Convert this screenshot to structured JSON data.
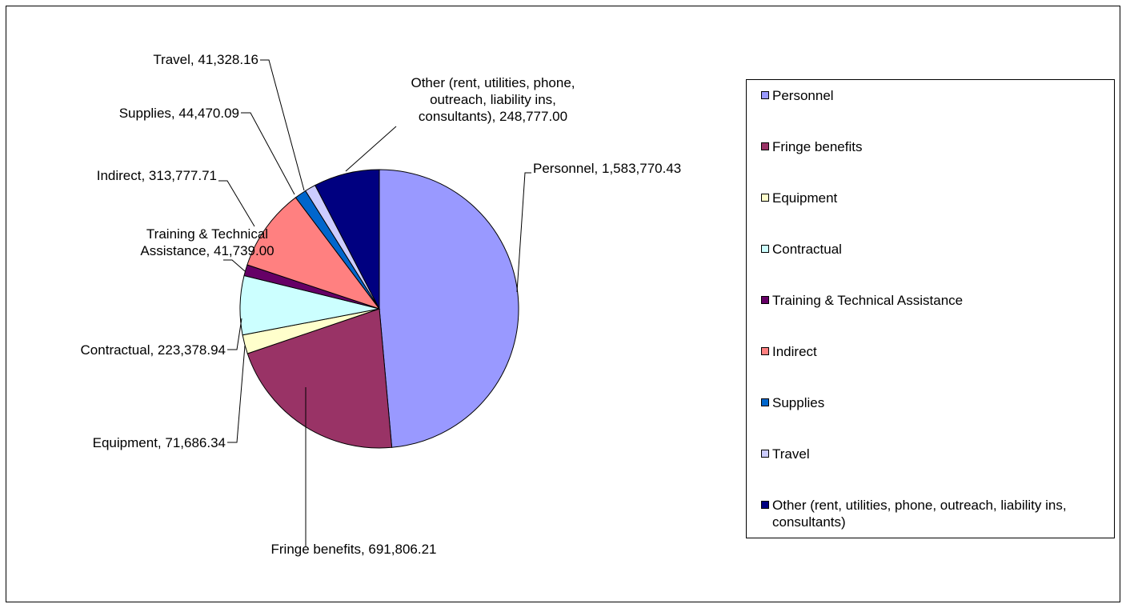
{
  "chart_data": {
    "type": "pie",
    "title": "",
    "legend_position": "right",
    "series": [
      {
        "slices": [
          {
            "name": "Personnel",
            "value": 1583770.43,
            "label": "Personnel, 1,583,770.43",
            "color": "#9999ff"
          },
          {
            "name": "Fringe benefits",
            "value": 691806.21,
            "label": "Fringe benefits, 691,806.21",
            "color": "#993366"
          },
          {
            "name": "Equipment",
            "value": 71686.34,
            "label": "Equipment, 71,686.34",
            "color": "#ffffcc"
          },
          {
            "name": "Contractual",
            "value": 223378.94,
            "label": "Contractual, 223,378.94",
            "color": "#ccffff"
          },
          {
            "name": "Training & Technical Assistance",
            "value": 41739.0,
            "label": "Training & Technical Assistance, 41,739.00",
            "color": "#660066"
          },
          {
            "name": "Indirect",
            "value": 313777.71,
            "label": "Indirect, 313,777.71",
            "color": "#ff8080"
          },
          {
            "name": "Supplies",
            "value": 44470.09,
            "label": "Supplies, 44,470.09",
            "color": "#0066cc"
          },
          {
            "name": "Travel",
            "value": 41328.16,
            "label": "Travel, 41,328.16",
            "color": "#ccccff"
          },
          {
            "name": "Other (rent, utilities, phone, outreach, liability ins, consultants)",
            "value": 248777.0,
            "label": "Other (rent, utilities, phone, outreach, liability ins, consultants), 248,777.00",
            "color": "#000080"
          }
        ]
      }
    ]
  },
  "labels": {
    "personnel": [
      "Personnel, 1,583,770.43"
    ],
    "fringe": [
      "Fringe benefits, 691,806.21"
    ],
    "equipment": [
      "Equipment,  71,686.34"
    ],
    "contractual": [
      "Contractual, 223,378.94"
    ],
    "training": [
      "Training & Technical",
      "Assistance, 41,739.00"
    ],
    "indirect": [
      "Indirect, 313,777.71"
    ],
    "supplies": [
      "Supplies, 44,470.09"
    ],
    "travel": [
      "Travel, 41,328.16"
    ],
    "other": [
      "Other (rent, utilities, phone,",
      "outreach, liability ins,",
      "consultants), 248,777.00"
    ]
  },
  "legend": [
    {
      "text": "Personnel",
      "color": "#9999ff"
    },
    {
      "text": "Fringe benefits",
      "color": "#993366"
    },
    {
      "text": "Equipment",
      "color": "#ffffcc"
    },
    {
      "text": "Contractual",
      "color": "#ccffff"
    },
    {
      "text": "Training & Technical Assistance",
      "color": "#660066"
    },
    {
      "text": "Indirect",
      "color": "#ff8080"
    },
    {
      "text": "Supplies",
      "color": "#0066cc"
    },
    {
      "text": "Travel",
      "color": "#ccccff"
    },
    {
      "text": "Other (rent, utilities, phone, outreach, liability ins, consultants)",
      "color": "#000080"
    }
  ]
}
